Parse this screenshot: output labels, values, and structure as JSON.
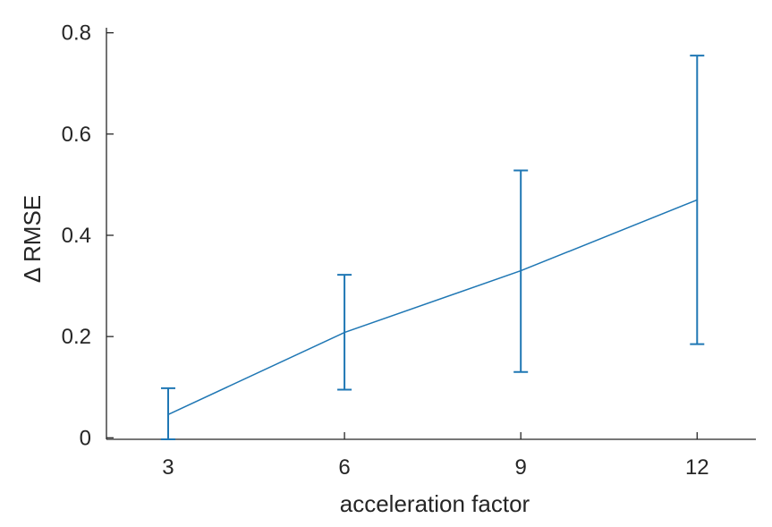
{
  "chart_data": {
    "type": "line",
    "xlabel": "acceleration factor",
    "ylabel": "Δ RMSE",
    "x": [
      3,
      6,
      9,
      12
    ],
    "xticks": [
      "3",
      "6",
      "9",
      "12"
    ],
    "xlim": [
      1.95,
      13.0
    ],
    "ylim": [
      -0.003,
      0.81
    ],
    "yticks": [
      "0",
      "0.2",
      "0.4",
      "0.6",
      "0.8"
    ],
    "ytick_values": [
      0,
      0.2,
      0.4,
      0.6,
      0.8
    ],
    "series": [
      {
        "values": [
          0.046,
          0.208,
          0.33,
          0.47
        ],
        "err_low": [
          -0.003,
          0.095,
          0.13,
          0.185
        ],
        "err_high": [
          0.098,
          0.322,
          0.528,
          0.755
        ]
      }
    ],
    "grid": false,
    "color": "#1f77b4"
  }
}
